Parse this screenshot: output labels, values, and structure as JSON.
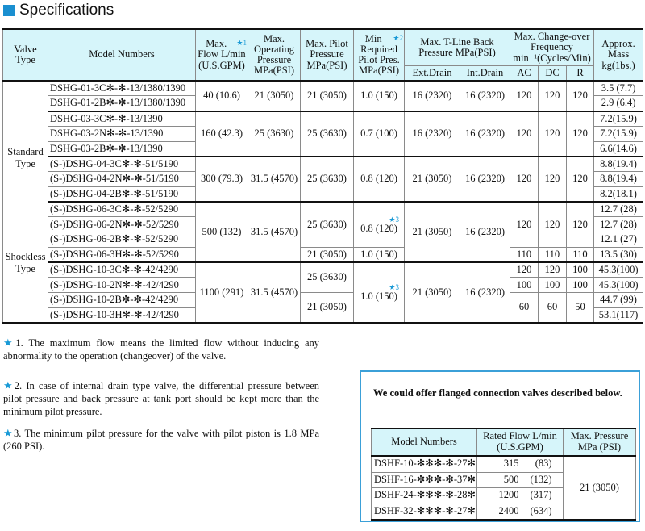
{
  "title": "Specifications",
  "colors": {
    "accent": "#1a8fd0",
    "header_bg": "#d6f5fa",
    "star": "#1a9ad6",
    "box_border": "#3ba0d8"
  },
  "table": {
    "headers": {
      "valve_type": "Valve Type",
      "model": "Model Numbers",
      "flow": "Max. Flow L/min (U.S.GPM)",
      "flow_star": "★1",
      "op": "Max. Operating Pressure MPa(PSI)",
      "pilot": "Max. Pilot Pressure MPa(PSI)",
      "min": "Min Required Pilot Pres. MPa(PSI)",
      "min_star": "★2",
      "tline": "Max. T-Line Back Pressure MPa(PSI)",
      "ext": "Ext.Drain",
      "int": "Int.Drain",
      "freq": "Max. Change-over Frequency min⁻¹(Cycles/Min)",
      "ac": "AC",
      "dc": "DC",
      "r": "R",
      "mass": "Approx. Mass kg(1bs.)"
    },
    "valve_types": [
      "Standard",
      "Type",
      "Shockless",
      "Type"
    ],
    "models": [
      "DSHG-01-3C✻-✻-13/1380/1390",
      "DSHG-01-2B✻-✻-13/1380/1390",
      "DSHG-03-3C✻-✻-13/1390",
      "DSHG-03-2N✻-✻-13/1390",
      "DSHG-03-2B✻-✻-13/1390",
      "(S-)DSHG-04-3C✻-✻-51/5190",
      "(S-)DSHG-04-2N✻-✻-51/5190",
      "(S-)DSHG-04-2B✻-✻-51/5190",
      "(S-)DSHG-06-3C✻-✻-52/5290",
      "(S-)DSHG-06-2N✻-✻-52/5290",
      "(S-)DSHG-06-2B✻-✻-52/5290",
      "(S-)DSHG-06-3H✻-✻-52/5290",
      "(S-)DSHG-10-3C✻-✻-42/4290",
      "(S-)DSHG-10-2N✻-✻-42/4290",
      "(S-)DSHG-10-2B✻-✻-42/4290",
      "(S-)DSHG-10-3H✻-✻-42/4290"
    ],
    "mass": [
      "3.5 (7.7)",
      "2.9 (6.4)",
      "7.2(15.9)",
      "7.2(15.9)",
      "6.6(14.6)",
      "8.8(19.4)",
      "8.8(19.4)",
      "8.2(18.1)",
      "12.7 (28)",
      "12.7 (28)",
      "12.1 (27)",
      "13.5 (30)",
      "45.3(100)",
      "45.3(100)",
      "44.7 (99)",
      "53.1(117)"
    ],
    "g1": {
      "flow": "40 (10.6)",
      "op": "21 (3050)",
      "pilot": "21 (3050)",
      "min": "1.0 (150)",
      "ext": "16 (2320)",
      "int": "16 (2320)",
      "ac": "120",
      "dc": "120",
      "r": "120"
    },
    "g2": {
      "flow": "160 (42.3)",
      "op": "25 (3630)",
      "pilot": "25 (3630)",
      "min": "0.7 (100)",
      "ext": "16 (2320)",
      "int": "16 (2320)",
      "ac": "120",
      "dc": "120",
      "r": "120"
    },
    "g3": {
      "flow": "300 (79.3)",
      "op": "31.5 (4570)",
      "pilot": "25 (3630)",
      "min": "0.8 (120)",
      "ext": "21 (3050)",
      "int": "16 (2320)",
      "ac": "120",
      "dc": "120",
      "r": "120"
    },
    "g4": {
      "flow": "500 (132)",
      "op": "31.5 (4570)",
      "pilot": [
        "25 (3630)",
        "21 (3050)"
      ],
      "min": [
        "0.8 (120)",
        "1.0 (150)"
      ],
      "min_star": "★3",
      "ext": "21 (3050)",
      "int": "16 (2320)",
      "freq": [
        [
          "120",
          "120",
          "120"
        ],
        [
          "110",
          "110",
          "110"
        ]
      ]
    },
    "g5": {
      "flow": "1100 (291)",
      "op": "31.5 (4570)",
      "pilot": [
        "25 (3630)",
        "21 (3050)"
      ],
      "min": "1.0 (150)",
      "min_star": "★3",
      "ext": "21 (3050)",
      "int": "16 (2320)",
      "freq": [
        [
          "120",
          "120",
          "100"
        ],
        [
          "100",
          "100",
          "100"
        ],
        [
          "60",
          "60",
          "50"
        ]
      ]
    }
  },
  "footnotes": [
    {
      "star": "★",
      "num": "1.",
      "text": "The maximum flow means the limited flow without inducing any abnormality to the operation (changeover) of the valve."
    },
    {
      "star": "★",
      "num": "2.",
      "text": "In case of internal drain type valve, the differential pressure between pilot pressure and back pressure at tank port should be kept more than the minimum pilot pressure."
    },
    {
      "star": "★",
      "num": "3.",
      "text": "The minimum pilot pressure for the valve with pilot piston is 1.8 MPa (260 PSI)."
    }
  ],
  "flanged": {
    "message": "We could offer flanged connection valves described below.",
    "headers": {
      "model": "Model Numbers",
      "flow": "Rated Flow L/min (U.S.GPM)",
      "pressure": "Max. Pressure MPa (PSI)"
    },
    "rows": [
      {
        "model": "DSHF-10-✻✻✻-✻-27✻",
        "lpm": "315",
        "gpm": "(83)"
      },
      {
        "model": "DSHF-16-✻✻✻-✻-37✻",
        "lpm": "500",
        "gpm": "(132)"
      },
      {
        "model": "DSHF-24-✻✻✻-✻-28✻",
        "lpm": "1200",
        "gpm": "(317)"
      },
      {
        "model": "DSHF-32-✻✻✻-✻-27✻",
        "lpm": "2400",
        "gpm": "(634)"
      }
    ],
    "pressure": "21 (3050)"
  }
}
